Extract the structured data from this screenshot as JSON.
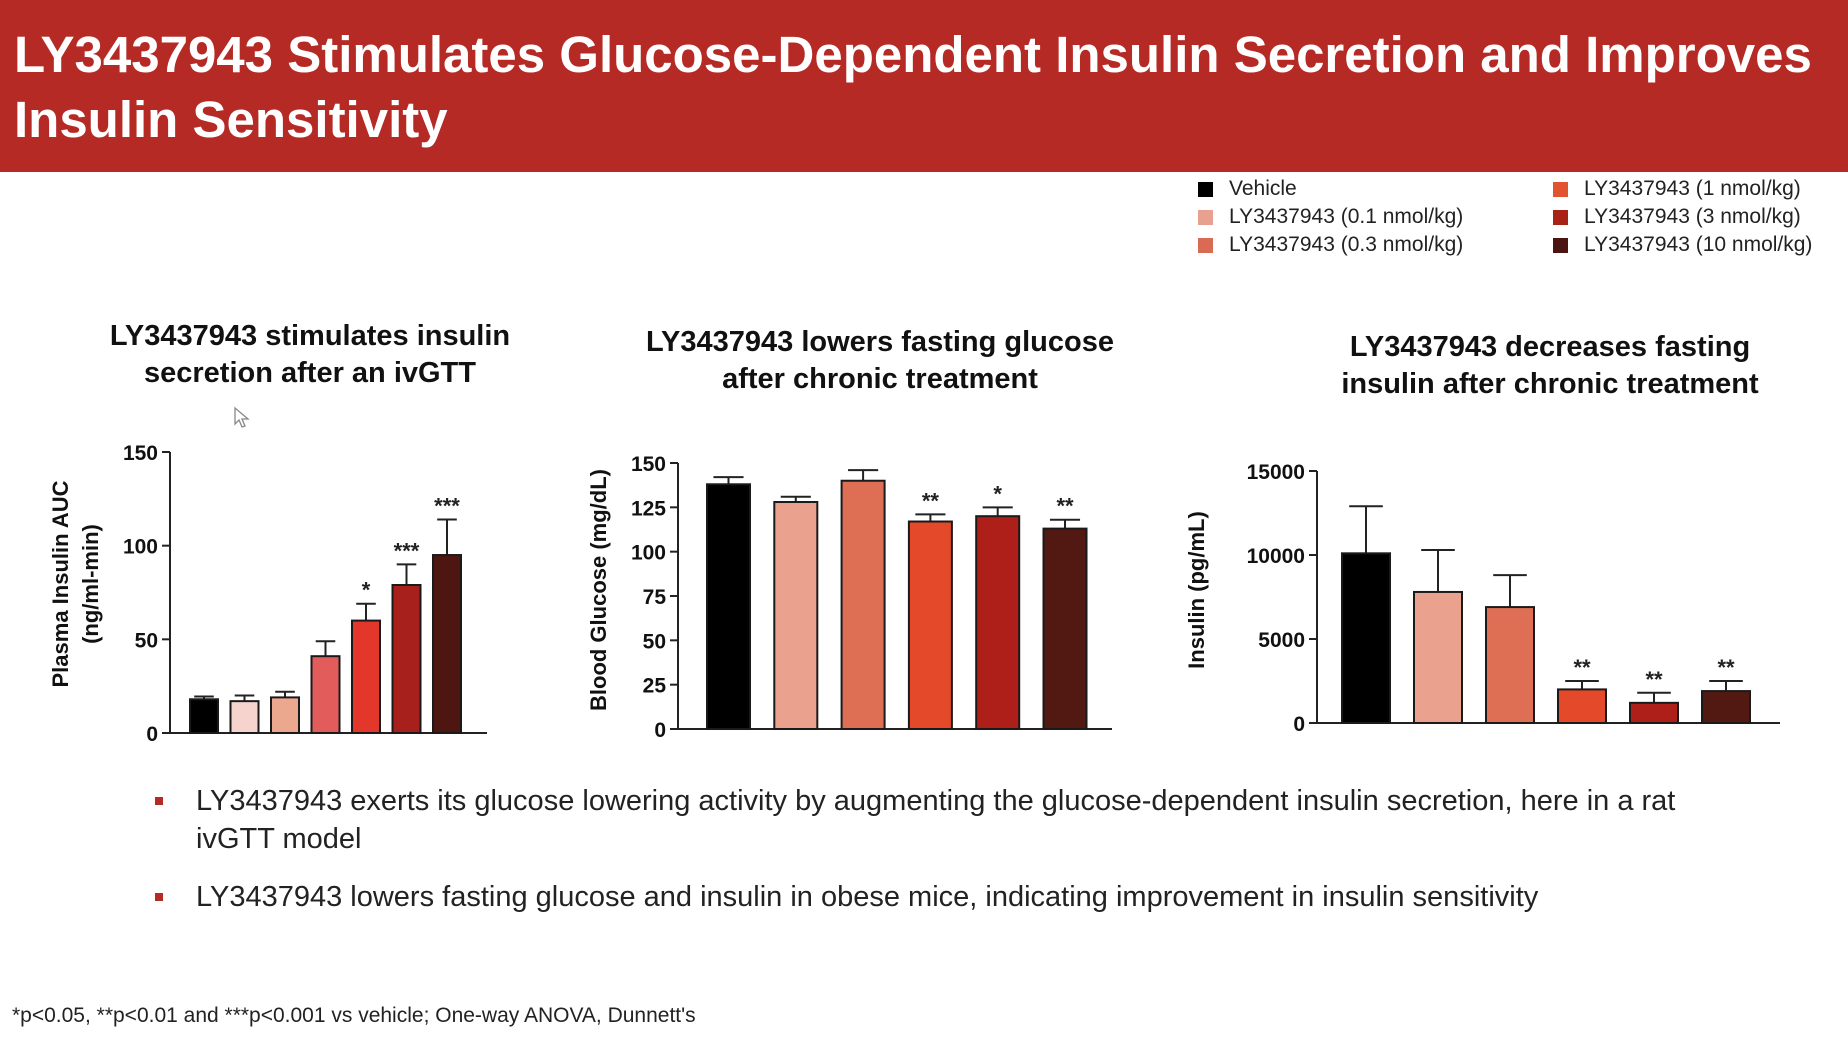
{
  "header": {
    "title": "LY3437943 Stimulates Glucose-Dependent Insulin Secretion and Improves Insulin Sensitivity"
  },
  "colors": {
    "header_bg": "#b52a25",
    "vehicle": "#000000",
    "dose_0_1": "#f4cbc4",
    "dose_0_3": "#e7a08a",
    "dose_1": "#e55858",
    "dose_3": "#e2392a",
    "dose_3_dark": "#a71e1e",
    "dose_10": "#4c1410"
  },
  "legend": [
    {
      "label": "Vehicle",
      "color": "#000000"
    },
    {
      "label": "LY3437943 (0.1 nmol/kg)",
      "color": "#e8a18f"
    },
    {
      "label": "LY3437943 (0.3 nmol/kg)",
      "color": "#db6a55"
    },
    {
      "label": "LY3437943 (1 nmol/kg)",
      "color": "#e2542f"
    },
    {
      "label": "LY3437943 (3 nmol/kg)",
      "color": "#a92218"
    },
    {
      "label": "LY3437943 (10 nmol/kg)",
      "color": "#4a1510"
    }
  ],
  "chart_data": [
    {
      "type": "bar",
      "title": "LY3437943 stimulates insulin secretion after an ivGTT",
      "ylabel_line1": "Plasma Insulin AUC",
      "ylabel_line2": "(ng/ml-min)",
      "ylim": [
        0,
        150
      ],
      "yticks": [
        "0",
        "50",
        "100",
        "150"
      ],
      "values": [
        18,
        17,
        19,
        41,
        60,
        79,
        95
      ],
      "errors": [
        1.5,
        3,
        3,
        8,
        9,
        11,
        19
      ],
      "significance": [
        "",
        "",
        "",
        "",
        "*",
        "***",
        "***"
      ],
      "colors": [
        "#000000",
        "#f6d3cd",
        "#eba88f",
        "#e35c5c",
        "#e2372a",
        "#a8201b",
        "#4e1611"
      ]
    },
    {
      "type": "bar",
      "title": "LY3437943 lowers fasting glucose after chronic treatment",
      "ylabel": "Blood Glucose (mg/dL)",
      "ylim": [
        0,
        150
      ],
      "yticks": [
        "0",
        "25",
        "50",
        "75",
        "100",
        "125",
        "150"
      ],
      "values": [
        138,
        128,
        140,
        117,
        120,
        113
      ],
      "errors": [
        4,
        3,
        6,
        4,
        5,
        5
      ],
      "significance": [
        "",
        "",
        "",
        "**",
        "*",
        "**"
      ],
      "colors": [
        "#000000",
        "#eaa28e",
        "#de6f54",
        "#e44a29",
        "#ae1f1a",
        "#521812"
      ]
    },
    {
      "type": "bar",
      "title": "LY3437943 decreases fasting insulin after chronic treatment",
      "ylabel": "Insulin (pg/mL)",
      "ylim": [
        0,
        15000
      ],
      "yticks": [
        "0",
        "5000",
        "10000",
        "15000"
      ],
      "values": [
        10100,
        7800,
        6900,
        2000,
        1200,
        1900
      ],
      "errors": [
        2800,
        2500,
        1900,
        500,
        600,
        600
      ],
      "significance": [
        "",
        "",
        "",
        "**",
        "**",
        "**"
      ],
      "colors": [
        "#000000",
        "#eaa28e",
        "#de6f54",
        "#e44a29",
        "#ae1f1a",
        "#521812"
      ]
    }
  ],
  "bullets": [
    "LY3437943 exerts its glucose lowering activity by augmenting the glucose-dependent insulin secretion, here in a rat ivGTT model",
    "LY3437943 lowers fasting glucose and insulin in obese mice, indicating improvement in insulin sensitivity"
  ],
  "footnote": "*p<0.05, **p<0.01 and ***p<0.001 vs vehicle; One-way  ANOVA, Dunnett's"
}
